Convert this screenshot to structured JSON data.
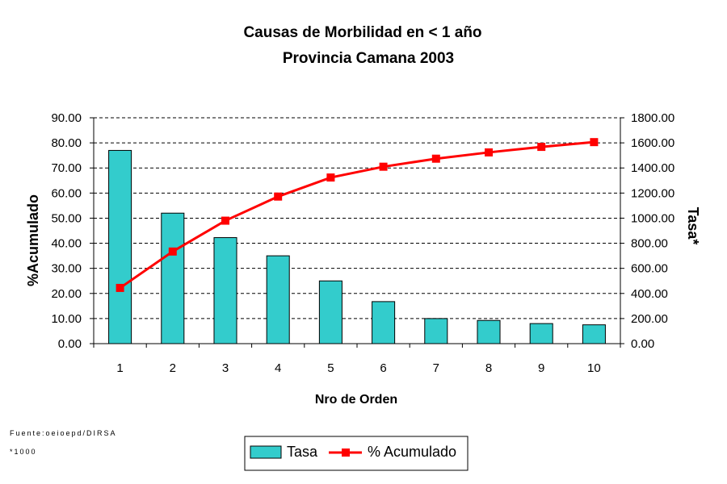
{
  "chart_data": {
    "type": "bar",
    "title": "Causas de Morbilidad en < 1 año",
    "subtitle": "Provincia Camana 2003",
    "xlabel": "Nro de Orden",
    "ylabel_left": "%Acumulado",
    "ylabel_right": "Tasa*",
    "categories": [
      "1",
      "2",
      "3",
      "4",
      "5",
      "6",
      "7",
      "8",
      "9",
      "10"
    ],
    "ylim_left": [
      0,
      90
    ],
    "ylim_right": [
      0,
      1800
    ],
    "yticks_left": [
      "0.00",
      "10.00",
      "20.00",
      "30.00",
      "40.00",
      "50.00",
      "60.00",
      "70.00",
      "80.00",
      "90.00"
    ],
    "yticks_right": [
      "0.00",
      "200.00",
      "400.00",
      "600.00",
      "800.00",
      "1000.00",
      "1200.00",
      "1400.00",
      "1600.00",
      "1800.00"
    ],
    "grid": true,
    "legend_position": "bottom",
    "series": [
      {
        "name": "Tasa",
        "type": "bar",
        "axis": "right",
        "color": "#33CCCC",
        "values": [
          1540,
          1040,
          845,
          700,
          500,
          335,
          200,
          185,
          160,
          150
        ]
      },
      {
        "name": "% Acumulado",
        "type": "line",
        "axis": "left",
        "color": "#FF0000",
        "values": [
          22.2,
          36.7,
          49.0,
          58.6,
          66.2,
          70.5,
          73.7,
          76.2,
          78.4,
          80.3
        ]
      }
    ]
  },
  "notes": {
    "source": "Fuente:oeioepd/DIRSA",
    "footnote": "*1000"
  }
}
